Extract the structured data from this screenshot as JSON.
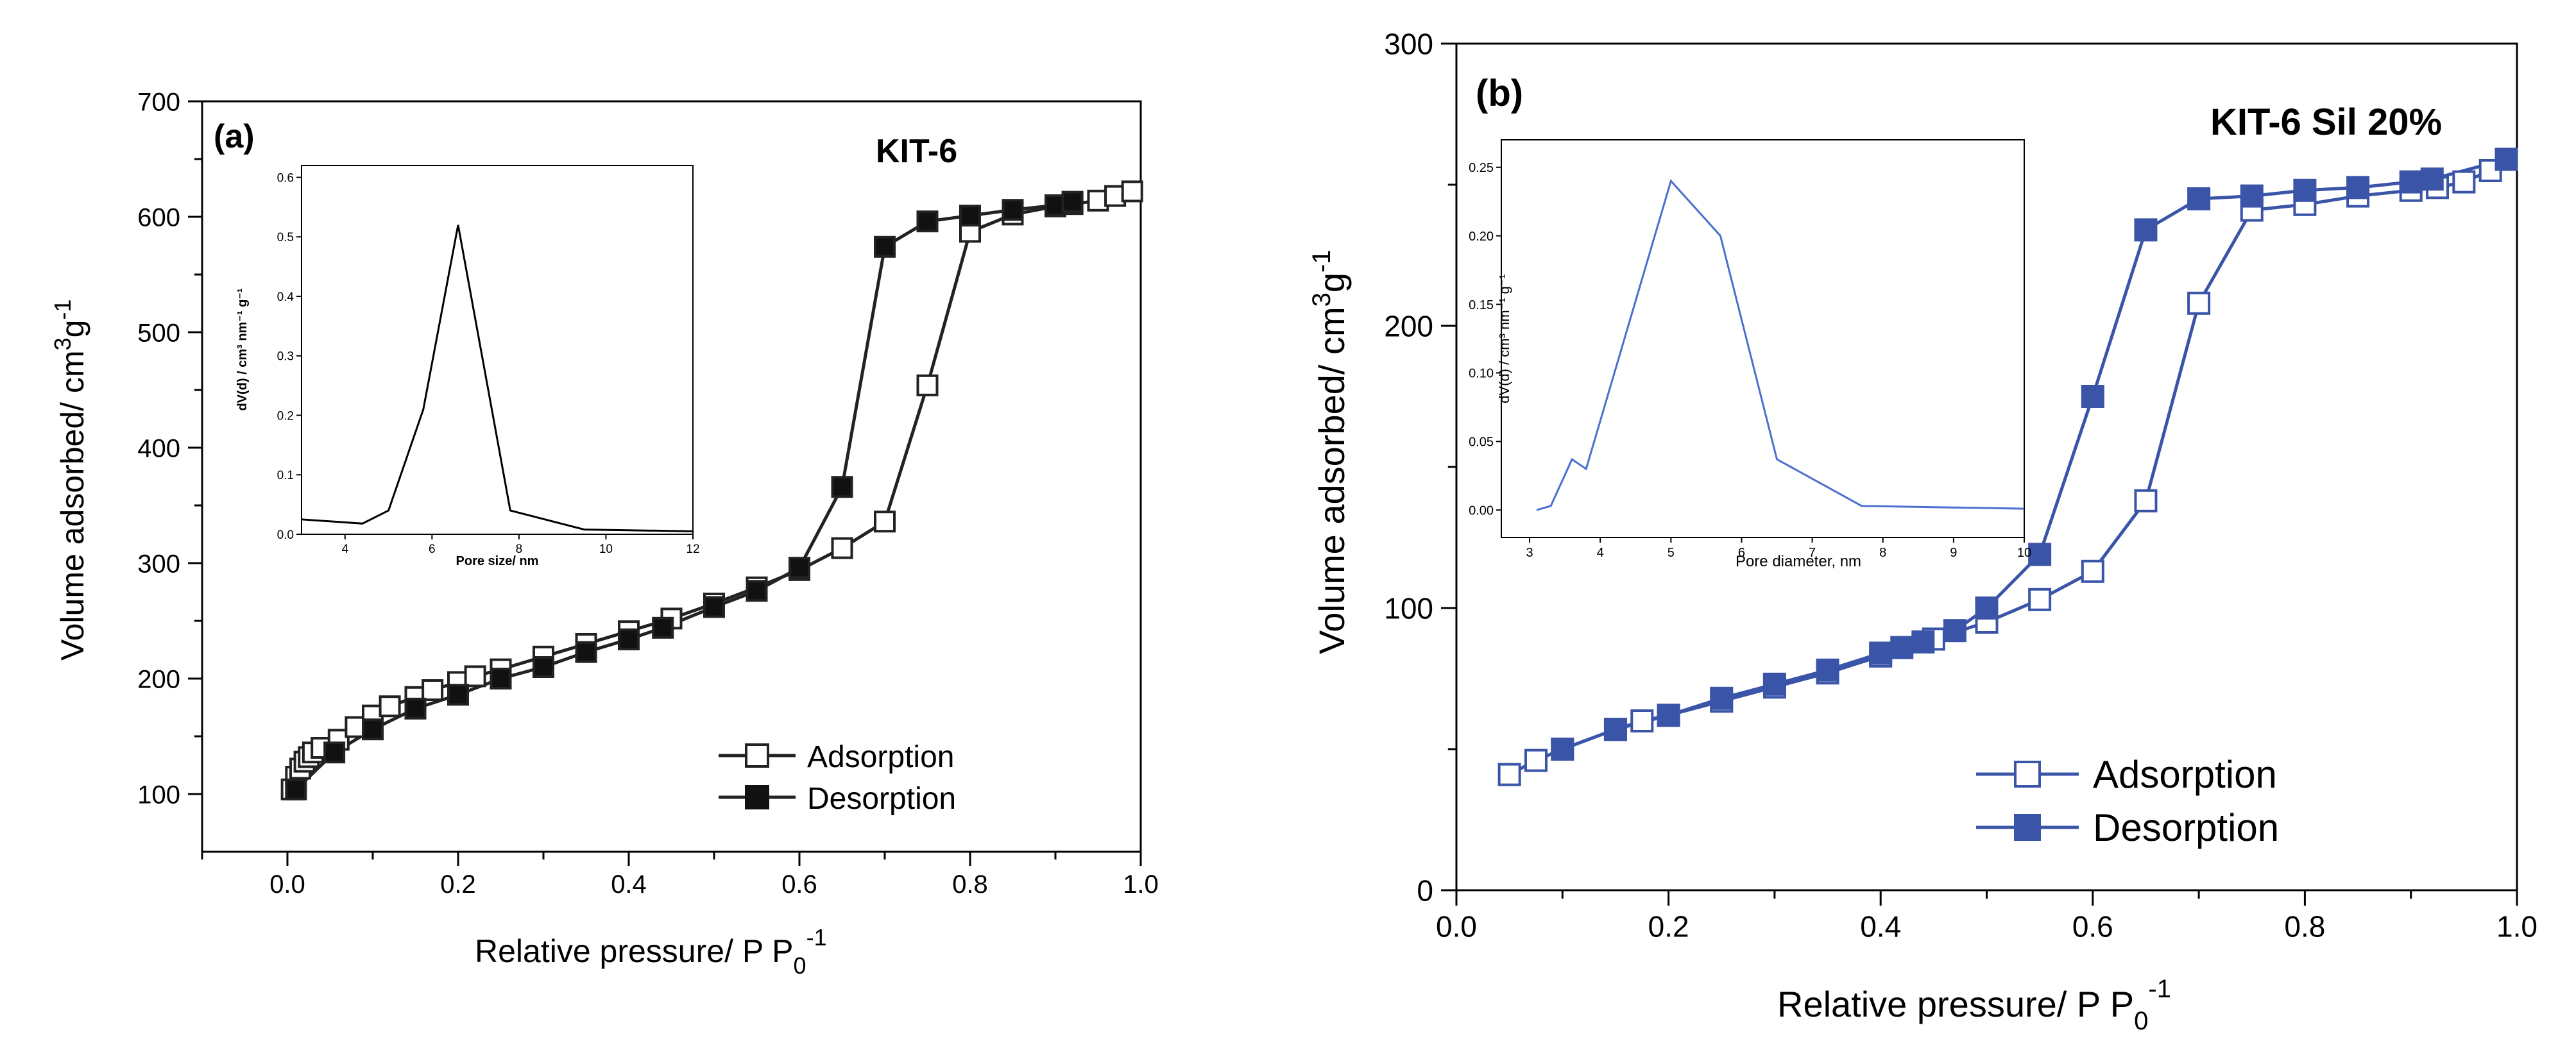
{
  "chart_data": [
    {
      "panel": "(a)",
      "label": "KIT-6",
      "type": "scatter",
      "xlabel": "Relative pressure/ P P",
      "xlabel_sub": "0",
      "xlabel_sup": "-1",
      "ylabel": "Volume adsorbed/ cm",
      "ylabel_sup1": "3",
      "ylabel_mid": "g",
      "ylabel_sup2": "-1",
      "xlim": [
        -0.1,
        1.0
      ],
      "ylim": [
        50,
        700
      ],
      "xticks": [
        0.0,
        0.2,
        0.4,
        0.6,
        0.8,
        1.0
      ],
      "xtick_labels": [
        "0.0",
        "0.2",
        "0.4",
        "0.6",
        "0.8",
        "1.0"
      ],
      "yticks": [
        100,
        200,
        300,
        400,
        500,
        600,
        700
      ],
      "ytick_labels": [
        "100",
        "200",
        "300",
        "400",
        "500",
        "600",
        "700"
      ],
      "legend": {
        "position": "bottom-right",
        "entries": [
          "Adsorption",
          "Desorption"
        ]
      },
      "series": [
        {
          "name": "Adsorption",
          "marker": "open-square",
          "x": [
            0.005,
            0.01,
            0.015,
            0.02,
            0.025,
            0.03,
            0.04,
            0.06,
            0.08,
            0.1,
            0.12,
            0.15,
            0.17,
            0.2,
            0.22,
            0.25,
            0.3,
            0.35,
            0.4,
            0.45,
            0.5,
            0.55,
            0.6,
            0.65,
            0.7,
            0.75,
            0.8,
            0.85,
            0.9,
            0.92,
            0.95,
            0.97,
            0.99
          ],
          "y": [
            104,
            115,
            122,
            128,
            132,
            136,
            140,
            147,
            158,
            168,
            176,
            184,
            190,
            197,
            202,
            208,
            219,
            230,
            241,
            252,
            265,
            279,
            294,
            313,
            336,
            454,
            587,
            602,
            609,
            611,
            614,
            618,
            622
          ]
        },
        {
          "name": "Desorption",
          "marker": "filled-square",
          "x": [
            0.01,
            0.055,
            0.1,
            0.15,
            0.2,
            0.25,
            0.3,
            0.35,
            0.4,
            0.44,
            0.5,
            0.55,
            0.6,
            0.65,
            0.7,
            0.75,
            0.8,
            0.85,
            0.9,
            0.92
          ],
          "y": [
            104,
            136,
            156,
            174,
            186,
            200,
            210,
            223,
            234,
            244,
            262,
            276,
            296,
            366,
            574,
            596,
            601,
            606,
            610,
            613
          ]
        }
      ],
      "inset": {
        "type": "line",
        "xlabel": "Pore size/ nm",
        "ylabel": "dV(d) / cm³ nm⁻¹ g⁻¹",
        "xlim": [
          3,
          12
        ],
        "ylim": [
          0,
          0.62
        ],
        "xticks": [
          4,
          6,
          8,
          10,
          12
        ],
        "xtick_labels": [
          "4",
          "6",
          "8",
          "10",
          "12"
        ],
        "yticks": [
          0.0,
          0.1,
          0.2,
          0.3,
          0.4,
          0.5,
          0.6
        ],
        "ytick_labels": [
          "0.0",
          "0.1",
          "0.2",
          "0.3",
          "0.4",
          "0.5",
          "0.6"
        ],
        "x": [
          3,
          4.4,
          5,
          5.8,
          6.6,
          7.8,
          9.5,
          12
        ],
        "y": [
          0.025,
          0.018,
          0.04,
          0.21,
          0.52,
          0.04,
          0.008,
          0.005
        ]
      }
    },
    {
      "panel": "(b)",
      "label": "KIT-6 Sil 20%",
      "type": "scatter",
      "xlabel": "Relative pressure/ P P",
      "xlabel_sub": "0",
      "xlabel_sup": "-1",
      "ylabel": "Volume adsorbed/ cm",
      "ylabel_sup1": "3",
      "ylabel_mid": "g",
      "ylabel_sup2": "-1",
      "xlim": [
        0.0,
        1.0
      ],
      "ylim": [
        0,
        300
      ],
      "xticks": [
        0.0,
        0.2,
        0.4,
        0.6,
        0.8,
        1.0
      ],
      "xtick_labels": [
        "0.0",
        "0.2",
        "0.4",
        "0.6",
        "0.8",
        "1.0"
      ],
      "yticks": [
        0,
        100,
        200,
        300
      ],
      "ytick_labels": [
        "0",
        "100",
        "200",
        "300"
      ],
      "legend": {
        "position": "bottom-right",
        "entries": [
          "Adsorption",
          "Desorption"
        ]
      },
      "series": [
        {
          "name": "Adsorption",
          "marker": "open-square",
          "x": [
            0.05,
            0.075,
            0.1,
            0.15,
            0.175,
            0.2,
            0.25,
            0.3,
            0.35,
            0.4,
            0.45,
            0.5,
            0.55,
            0.6,
            0.65,
            0.7,
            0.75,
            0.8,
            0.85,
            0.9,
            0.925,
            0.95,
            0.975
          ],
          "y": [
            41,
            46,
            50,
            57,
            60,
            62,
            67,
            72,
            77,
            83,
            89,
            95,
            103,
            113,
            138,
            208,
            241,
            243,
            246,
            248,
            249,
            251,
            255
          ]
        },
        {
          "name": "Desorption",
          "marker": "filled-square",
          "x": [
            0.1,
            0.15,
            0.2,
            0.25,
            0.3,
            0.35,
            0.4,
            0.42,
            0.44,
            0.47,
            0.5,
            0.55,
            0.6,
            0.65,
            0.7,
            0.75,
            0.8,
            0.85,
            0.9,
            0.92,
            0.99
          ],
          "y": [
            50,
            57,
            62,
            68,
            73,
            78,
            84,
            86,
            88,
            92,
            100,
            119,
            175,
            234,
            245,
            246,
            248,
            249,
            251,
            252,
            259
          ]
        }
      ],
      "inset": {
        "type": "line",
        "xlabel": "Pore diameter, nm",
        "ylabel": "dV(d) / cm³ nm⁻¹ g⁻¹",
        "xlim": [
          2.6,
          10
        ],
        "ylim": [
          -0.02,
          0.27
        ],
        "xticks": [
          3,
          4,
          5,
          6,
          7,
          8,
          9,
          10
        ],
        "xtick_labels": [
          "3",
          "4",
          "5",
          "6",
          "7",
          "8",
          "9",
          "10"
        ],
        "yticks": [
          0.0,
          0.05,
          0.1,
          0.15,
          0.2,
          0.25
        ],
        "ytick_labels": [
          "0.00",
          "0.05",
          "0.10",
          "0.15",
          "0.20",
          "0.25"
        ],
        "x": [
          3.1,
          3.3,
          3.6,
          3.8,
          4.2,
          5.0,
          5.7,
          6.5,
          7.7,
          10
        ],
        "y": [
          0.0,
          0.003,
          0.037,
          0.03,
          0.1,
          0.24,
          0.2,
          0.037,
          0.003,
          0.001
        ]
      }
    }
  ]
}
